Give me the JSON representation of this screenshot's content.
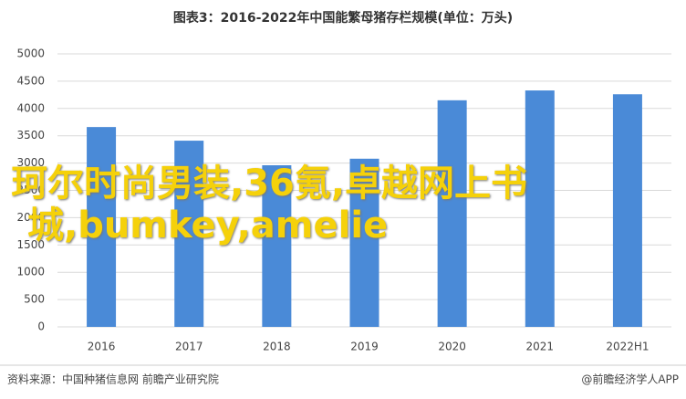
{
  "chart_data": {
    "type": "bar",
    "title": "图表3：2016-2022年中国能繁母猪存栏规模(单位：万头)",
    "categories": [
      "2016",
      "2017",
      "2018",
      "2019",
      "2020",
      "2021",
      "2022H1"
    ],
    "values": [
      3660,
      3410,
      2960,
      3080,
      4150,
      4330,
      4260
    ],
    "color": "#4a8ad7",
    "ylim": [
      0,
      5000
    ],
    "yticks": [
      0,
      500,
      1000,
      1500,
      2000,
      2500,
      3000,
      3500,
      4000,
      4500,
      5000
    ],
    "grid": true
  },
  "overlay_text": "珂尔时尚男装,36氪,卓越网上书城,bumkey,amelie",
  "source": "资料来源：中国种猪信息网 前瞻产业研究院",
  "credit": "@前瞻经济学人APP"
}
